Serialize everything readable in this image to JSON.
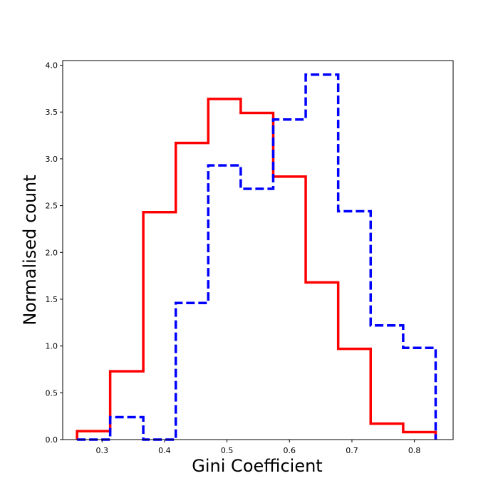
{
  "chart_data": {
    "type": "histogram-step",
    "xlabel": "Gini Coefficient",
    "ylabel": "Normalised count",
    "xlim": [
      0.237,
      0.862
    ],
    "ylim": [
      0,
      4.05
    ],
    "xticks": [
      0.3,
      0.4,
      0.5,
      0.6,
      0.7,
      0.8
    ],
    "yticks": [
      0.0,
      0.5,
      1.0,
      1.5,
      2.0,
      2.5,
      3.0,
      3.5,
      4.0
    ],
    "grid": false,
    "legend": "none",
    "series": [
      {
        "style": "solid",
        "color": "#ff0000",
        "edges": [
          0.26,
          0.313,
          0.366,
          0.418,
          0.47,
          0.522,
          0.574,
          0.626,
          0.678,
          0.73,
          0.782,
          0.834
        ],
        "values": [
          0.09,
          0.73,
          2.43,
          3.17,
          3.64,
          3.49,
          2.81,
          1.68,
          0.97,
          0.17,
          0.08
        ]
      },
      {
        "style": "dashed",
        "color": "#0000ff",
        "edges": [
          0.26,
          0.313,
          0.366,
          0.418,
          0.47,
          0.522,
          0.574,
          0.626,
          0.678,
          0.73,
          0.782,
          0.834
        ],
        "values": [
          0.0,
          0.24,
          0.0,
          1.46,
          2.93,
          2.68,
          3.42,
          3.9,
          2.44,
          1.22,
          0.98
        ]
      }
    ]
  }
}
